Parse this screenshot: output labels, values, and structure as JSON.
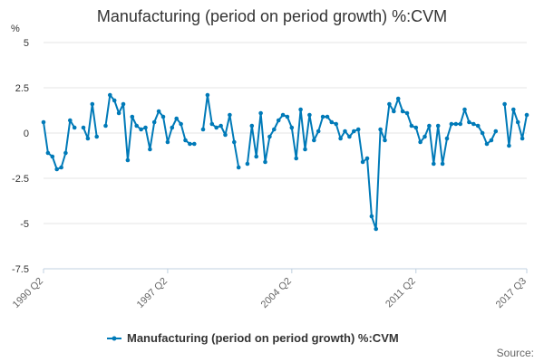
{
  "chart_data": {
    "type": "line",
    "title": "Manufacturing (period on period growth) %:CVM",
    "ylabel_unit": "%",
    "ylim": [
      -7.5,
      5
    ],
    "yticks": [
      5,
      2.5,
      0,
      -2.5,
      -5,
      -7.5
    ],
    "ytick_labels": [
      "5",
      "2.5",
      "0",
      "-2.5",
      "-5",
      "-7.5"
    ],
    "xtick_labels": [
      "1990 Q2",
      "1997 Q2",
      "2004 Q2",
      "2011 Q2",
      "2017 Q3"
    ],
    "xtick_indices": [
      0,
      28,
      56,
      84,
      109
    ],
    "grid": true,
    "legend_position": "bottom",
    "source_label": "Source:",
    "series": [
      {
        "name": "Manufacturing (period on period growth) %:CVM",
        "color": "#007ab8",
        "values": [
          0.6,
          -1.1,
          -1.3,
          -2.0,
          -1.9,
          -1.1,
          0.7,
          0.3,
          null,
          0.3,
          -0.3,
          1.6,
          -0.2,
          null,
          0.4,
          2.1,
          1.8,
          1.1,
          1.6,
          -1.5,
          0.9,
          0.4,
          0.2,
          0.3,
          -0.9,
          0.6,
          1.2,
          0.9,
          -0.5,
          0.3,
          0.8,
          0.5,
          -0.4,
          -0.6,
          -0.6,
          null,
          0.2,
          2.1,
          0.5,
          0.3,
          0.4,
          -0.1,
          1.0,
          -0.5,
          -1.9,
          null,
          -1.7,
          0.4,
          -1.3,
          1.1,
          -1.6,
          -0.2,
          0.2,
          0.7,
          1.0,
          0.9,
          0.3,
          -1.4,
          1.3,
          -0.9,
          1.0,
          -0.4,
          0.1,
          0.9,
          0.9,
          0.6,
          0.5,
          -0.3,
          0.1,
          -0.2,
          0.1,
          0.2,
          -1.6,
          -1.4,
          -4.6,
          -5.3,
          0.2,
          -0.4,
          1.6,
          1.2,
          1.9,
          1.2,
          1.1,
          0.4,
          0.3,
          -0.5,
          -0.2,
          0.4,
          -1.7,
          0.4,
          -1.7,
          -0.3,
          0.5,
          0.5,
          0.5,
          1.3,
          0.6,
          0.5,
          0.4,
          0.0,
          -0.6,
          -0.4,
          0.1,
          null,
          1.6,
          -0.7,
          1.3,
          0.6,
          -0.3,
          1.0
        ]
      }
    ]
  }
}
